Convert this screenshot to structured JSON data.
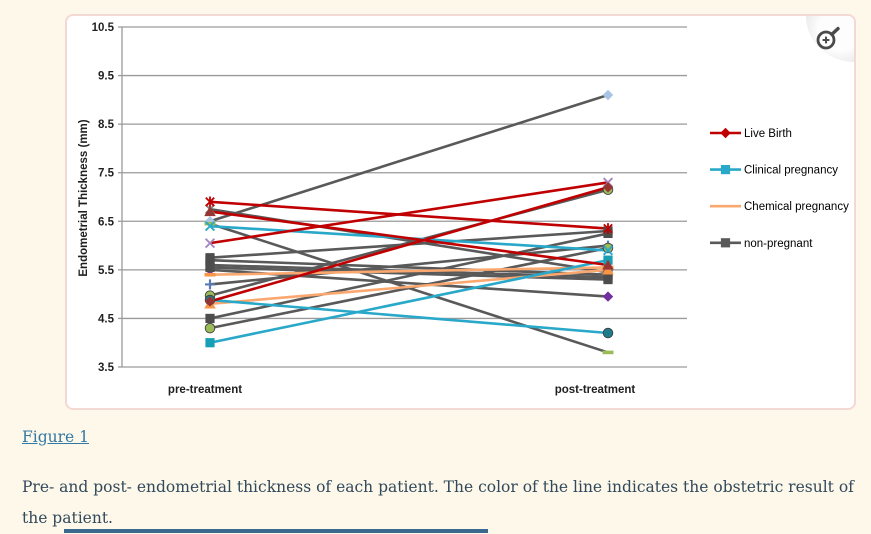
{
  "page": {
    "background_color": "#FDF8E9"
  },
  "figure_panel": {
    "background_color": "#FFFFFF",
    "border_color": "#F3D8D4"
  },
  "zoom_button": {
    "icon": "magnifier-plus"
  },
  "figure_link": {
    "label": "Figure 1",
    "color": "#3278A5"
  },
  "caption": {
    "text": "Pre- and post- endometrial thickness of each patient. The color of the line indicates the obstetric result of the patient."
  },
  "cutoff_bar": {
    "color": "#3B688E"
  },
  "chart_data": {
    "type": "line",
    "title": "",
    "xlabel": "",
    "ylabel": "Endometrial Thickness (mm)",
    "categories": [
      "pre-treatment",
      "post-treatment"
    ],
    "ylim": [
      3.5,
      10.5
    ],
    "yticks": [
      10.5,
      9.5,
      8.5,
      7.5,
      6.5,
      5.5,
      4.5,
      3.5
    ],
    "grid": true,
    "legend_position": "right",
    "axis_color": "#9A9A9A",
    "legend": [
      {
        "label": "Live Birth",
        "color": "#C00000",
        "marker": "diamond"
      },
      {
        "label": "Clinical pregnancy",
        "color": "#29A8C9",
        "marker": "square"
      },
      {
        "label": "Chemical pregnancy",
        "color": "#FAA870",
        "marker": "none"
      },
      {
        "label": "non-pregnant",
        "color": "#595959",
        "marker": "square"
      }
    ],
    "series": [
      {
        "group": "non-pregnant",
        "line_color": "#595959",
        "marker": "diamond",
        "marker_color": "#A9C3E3",
        "values": [
          6.5,
          9.1
        ]
      },
      {
        "group": "non-pregnant",
        "line_color": "#595959",
        "marker": "x",
        "marker_color": "#7F7F7F",
        "values": [
          6.75,
          5.45
        ]
      },
      {
        "group": "non-pregnant",
        "line_color": "#595959",
        "marker": "square",
        "marker_color": "#4D4D4D",
        "values": [
          5.75,
          6.3
        ]
      },
      {
        "group": "non-pregnant",
        "line_color": "#595959",
        "marker": "square",
        "marker_color": "#4D4D4D",
        "values": [
          5.7,
          5.4
        ]
      },
      {
        "group": "non-pregnant",
        "line_color": "#595959",
        "marker": "diamond",
        "marker_color": "#7030A0",
        "values": [
          5.5,
          4.95
        ]
      },
      {
        "group": "non-pregnant",
        "line_color": "#595959",
        "marker": "plus",
        "marker_color": "#5B7AB5",
        "values": [
          5.2,
          6.0
        ]
      },
      {
        "group": "non-pregnant",
        "line_color": "#595959",
        "marker": "dash",
        "marker_color": "#9BBB59",
        "values": [
          6.45,
          3.8
        ]
      },
      {
        "group": "non-pregnant",
        "line_color": "#595959",
        "marker": "square",
        "marker_color": "#4D4D4D",
        "values": [
          4.5,
          6.25
        ]
      },
      {
        "group": "non-pregnant",
        "line_color": "#595959",
        "marker": "circle",
        "marker_color": "#9BBB59",
        "values": [
          4.97,
          7.15
        ]
      },
      {
        "group": "non-pregnant",
        "line_color": "#595959",
        "marker": "square",
        "marker_color": "#4D4D4D",
        "values": [
          5.6,
          5.35
        ]
      },
      {
        "group": "non-pregnant",
        "line_color": "#595959",
        "marker": "circle",
        "marker_color": "#9BBB59",
        "values": [
          4.3,
          5.95
        ]
      },
      {
        "group": "non-pregnant",
        "line_color": "#595959",
        "marker": "square",
        "marker_color": "#4D4D4D",
        "values": [
          5.55,
          5.3
        ]
      },
      {
        "group": "Chemical pregnancy",
        "line_color": "#FAA870",
        "marker": "dash",
        "marker_color": "#F79646",
        "values": [
          5.4,
          5.55
        ]
      },
      {
        "group": "Chemical pregnancy",
        "line_color": "#FAA870",
        "marker": "triangle",
        "marker_color": "#F79646",
        "values": [
          4.8,
          5.5
        ]
      },
      {
        "group": "Clinical pregnancy",
        "line_color": "#29A8C9",
        "marker": "x",
        "marker_color": "#29A8C9",
        "values": [
          6.4,
          5.9
        ]
      },
      {
        "group": "Clinical pregnancy",
        "line_color": "#29A8C9",
        "marker": "circle",
        "marker_color": "#1F7A8C",
        "values": [
          4.88,
          4.2
        ]
      },
      {
        "group": "Clinical pregnancy",
        "line_color": "#29A8C9",
        "marker": "square",
        "marker_color": "#17A0B4",
        "values": [
          4.0,
          5.7
        ]
      },
      {
        "group": "Live Birth",
        "line_color": "#C00000",
        "marker": "asterisk",
        "marker_color": "#C00000",
        "values": [
          6.9,
          6.35
        ]
      },
      {
        "group": "Live Birth",
        "line_color": "#C00000",
        "marker": "triangle",
        "marker_color": "#963634",
        "values": [
          6.7,
          5.6
        ]
      },
      {
        "group": "Live Birth",
        "line_color": "#C00000",
        "marker": "x",
        "marker_color": "#A586C0",
        "values": [
          6.05,
          7.3
        ]
      },
      {
        "group": "Live Birth",
        "line_color": "#C00000",
        "marker": "diamond",
        "marker_color": "#963634",
        "values": [
          4.85,
          7.2
        ]
      }
    ]
  }
}
